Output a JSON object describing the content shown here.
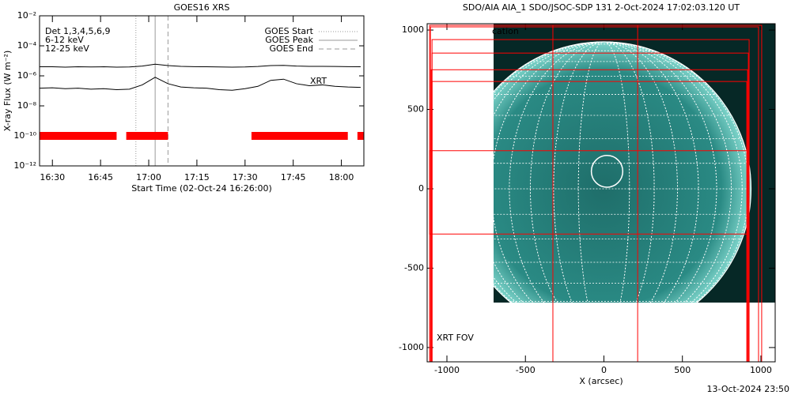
{
  "chart_data": [
    {
      "type": "line",
      "title": "GOES16 XRS",
      "y_label": "X-ray Flux (W m⁻²)",
      "x_label": "Start Time (02-Oct-24 16:26:00)",
      "detectors": "Det 1,3,4,5,6,9",
      "log_y": true,
      "line_color": "#000000",
      "x": [
        "16:26",
        "16:30",
        "16:34",
        "16:38",
        "16:42",
        "16:46",
        "16:50",
        "16:54",
        "16:58",
        "17:02",
        "17:06",
        "17:10",
        "17:14",
        "17:18",
        "17:22",
        "17:26",
        "17:30",
        "17:34",
        "17:38",
        "17:42",
        "17:46",
        "17:50",
        "17:54",
        "17:58",
        "18:02",
        "18:06"
      ],
      "series": [
        {
          "name": "6-12 keV",
          "color": "#e000e0",
          "values": [
            4e-06,
            4e-06,
            3.8e-06,
            4e-06,
            3.9e-06,
            4e-06,
            3.8e-06,
            3.9e-06,
            4.5e-06,
            6e-06,
            4.8e-06,
            4.3e-06,
            4.1e-06,
            4e-06,
            3.9e-06,
            3.8e-06,
            3.9e-06,
            4.2e-06,
            4.8e-06,
            5e-06,
            4.5e-06,
            4.3e-06,
            4.3e-06,
            4.2e-06,
            4.1e-06,
            4e-06
          ]
        },
        {
          "name": "12-25 keV",
          "color": "#00c000",
          "values": [
            1.5e-07,
            1.6e-07,
            1.4e-07,
            1.5e-07,
            1.3e-07,
            1.4e-07,
            1.2e-07,
            1.3e-07,
            2.5e-07,
            8e-07,
            3e-07,
            1.8e-07,
            1.6e-07,
            1.5e-07,
            1.2e-07,
            1.1e-07,
            1.4e-07,
            2e-07,
            5e-07,
            6e-07,
            3e-07,
            2.2e-07,
            2.5e-07,
            2e-07,
            1.8e-07,
            1.7e-07
          ]
        }
      ],
      "events": [
        {
          "name": "GOES Start",
          "x": "16:56",
          "style": "dotted"
        },
        {
          "name": "GOES Peak",
          "x": "17:02",
          "style": "solid"
        },
        {
          "name": "GOES End",
          "x": "17:06",
          "style": "dashed"
        }
      ],
      "xrt_label": "XRT",
      "xrt_level": 1e-10,
      "xrt_color": "#ff0000",
      "xrt_intervals": [
        [
          "16:26",
          "16:50"
        ],
        [
          "16:53",
          "17:06"
        ],
        [
          "17:32",
          "18:02"
        ],
        [
          "18:05",
          "18:07"
        ]
      ],
      "xlim": [
        "16:26",
        "18:07"
      ],
      "xticks": [
        "16:30",
        "16:45",
        "17:00",
        "17:15",
        "17:30",
        "17:45",
        "18:00"
      ],
      "ylim": [
        1e-12,
        0.01
      ],
      "yticks": [
        {
          "value": 1e-12,
          "label": "10⁻¹²"
        },
        {
          "value": 1e-10,
          "label": "10⁻¹⁰"
        },
        {
          "value": 1e-08,
          "label": "10⁻⁸"
        },
        {
          "value": 1e-06,
          "label": "10⁻⁶"
        },
        {
          "value": 0.0001,
          "label": "10⁻⁴"
        },
        {
          "value": 0.01,
          "label": "10⁻²"
        }
      ]
    },
    {
      "type": "image",
      "title": "SDO/AIA AIA_1 SDO/JSOC-SDP 131  2-Oct-2024 17:02:03.120 UT",
      "x_label": "X (arcsec)",
      "annotation": "cation",
      "fov_label": "XRT FOV",
      "timestamp": "13-Oct-2024 23:50",
      "box_color": "#ff0000",
      "xlim": [
        -1126,
        1091
      ],
      "ylim": [
        -1090,
        1040
      ],
      "xticks": [
        -1000,
        -500,
        0,
        500,
        1000
      ],
      "yticks": [
        -1000,
        -500,
        0,
        500,
        1000
      ],
      "flare_circle": {
        "x": 20,
        "y": 110,
        "r": 100
      },
      "fov_boxes": [
        [
          -1110,
          -1095,
          1005,
          1030
        ],
        [
          -1105,
          -1090,
          985,
          1020
        ],
        [
          -1095,
          -1090,
          925,
          940
        ],
        [
          -1095,
          -1090,
          920,
          855
        ],
        [
          -1100,
          -1095,
          915,
          750
        ],
        [
          -1095,
          -1090,
          910,
          676
        ],
        [
          -1110,
          -285,
          920,
          240
        ],
        [
          -325,
          -1090,
          215,
          1030
        ]
      ]
    }
  ]
}
